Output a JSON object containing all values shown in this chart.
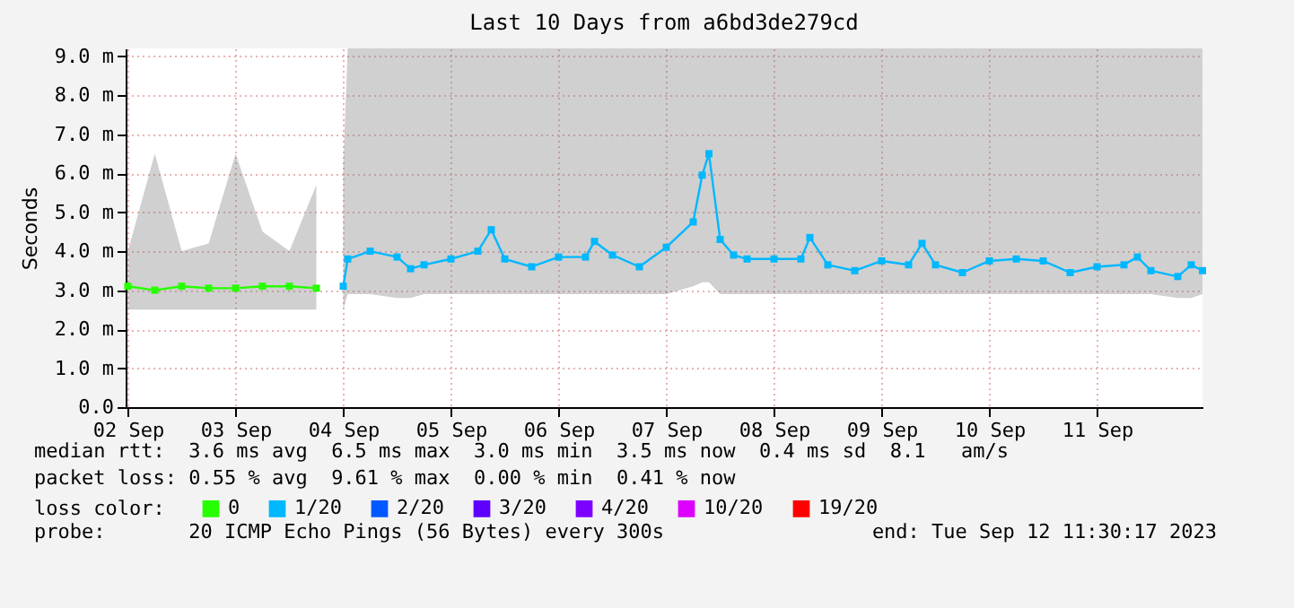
{
  "chart_data": {
    "type": "line",
    "title": "Last 10 Days from a6bd3de279cd",
    "ylabel": "Seconds",
    "legend_title": "loss color:",
    "x": [
      "2023-09-02T12:00",
      "2023-09-02T18:00",
      "2023-09-03T00:00",
      "2023-09-03T06:00",
      "2023-09-03T12:00",
      "2023-09-03T18:00",
      "2023-09-04T00:00",
      "2023-09-04T06:00",
      "2023-09-04T12:00",
      "2023-09-04T13:00",
      "2023-09-04T18:00",
      "2023-09-05T00:00",
      "2023-09-05T03:00",
      "2023-09-05T06:00",
      "2023-09-05T12:00",
      "2023-09-05T18:00",
      "2023-09-05T21:00",
      "2023-09-06T00:00",
      "2023-09-06T06:00",
      "2023-09-06T12:00",
      "2023-09-06T18:00",
      "2023-09-06T20:00",
      "2023-09-07T00:00",
      "2023-09-07T06:00",
      "2023-09-07T12:00",
      "2023-09-07T18:00",
      "2023-09-07T20:00",
      "2023-09-07T21:30",
      "2023-09-08T00:00",
      "2023-09-08T03:00",
      "2023-09-08T06:00",
      "2023-09-08T12:00",
      "2023-09-08T18:00",
      "2023-09-08T20:00",
      "2023-09-09T00:00",
      "2023-09-09T06:00",
      "2023-09-09T12:00",
      "2023-09-09T18:00",
      "2023-09-09T21:00",
      "2023-09-10T00:00",
      "2023-09-10T06:00",
      "2023-09-10T12:00",
      "2023-09-10T18:00",
      "2023-09-11T00:00",
      "2023-09-11T06:00",
      "2023-09-11T12:00",
      "2023-09-11T18:00",
      "2023-09-11T21:00",
      "2023-09-12T00:00",
      "2023-09-12T06:00",
      "2023-09-12T09:00",
      "2023-09-12T11:30"
    ],
    "series": [
      {
        "name": "0",
        "color": "#26ff00",
        "values": [
          3.1,
          3.0,
          3.1,
          3.05,
          3.05,
          3.1,
          3.1,
          3.05,
          null,
          null,
          null,
          null,
          null,
          null,
          null,
          null,
          null,
          null,
          null,
          null,
          null,
          null,
          null,
          null,
          null,
          null,
          null,
          null,
          null,
          null,
          null,
          null,
          null,
          null,
          null,
          null,
          null,
          null,
          null,
          null,
          null,
          null,
          null,
          null,
          null,
          null,
          null,
          null,
          null,
          null,
          null,
          null
        ],
        "lower": [
          2.5,
          2.5,
          2.5,
          2.5,
          2.5,
          2.5,
          2.5,
          2.5,
          null,
          null,
          null,
          null,
          null,
          null,
          null,
          null,
          null,
          null,
          null,
          null,
          null,
          null,
          null,
          null,
          null,
          null,
          null,
          null,
          null,
          null,
          null,
          null,
          null,
          null,
          null,
          null,
          null,
          null,
          null,
          null,
          null,
          null,
          null,
          null,
          null,
          null,
          null,
          null,
          null,
          null,
          null,
          null
        ],
        "upper": [
          4.0,
          6.5,
          4.0,
          4.2,
          6.5,
          4.5,
          4.0,
          5.7,
          null,
          null,
          null,
          null,
          null,
          null,
          null,
          null,
          null,
          null,
          null,
          null,
          null,
          null,
          null,
          null,
          null,
          null,
          null,
          null,
          null,
          null,
          null,
          null,
          null,
          null,
          null,
          null,
          null,
          null,
          null,
          null,
          null,
          null,
          null,
          null,
          null,
          null,
          null,
          null,
          null,
          null,
          null,
          null
        ]
      },
      {
        "name": "1/20",
        "color": "#00b8ff",
        "values": [
          null,
          null,
          null,
          null,
          null,
          null,
          null,
          null,
          3.1,
          3.8,
          4.0,
          3.85,
          3.55,
          3.65,
          3.8,
          4.0,
          4.55,
          3.8,
          3.6,
          3.85,
          3.85,
          4.25,
          3.9,
          3.6,
          4.1,
          4.75,
          5.95,
          6.5,
          4.3,
          3.9,
          3.8,
          3.8,
          3.8,
          4.35,
          3.65,
          3.5,
          3.75,
          3.65,
          4.2,
          3.65,
          3.45,
          3.75,
          3.8,
          3.75,
          3.45,
          3.6,
          3.65,
          3.85,
          3.5,
          3.35,
          3.65,
          3.5
        ],
        "lower": [
          null,
          null,
          null,
          null,
          null,
          null,
          null,
          null,
          2.5,
          2.9,
          2.9,
          2.8,
          2.8,
          2.9,
          2.9,
          2.9,
          2.9,
          2.9,
          2.9,
          2.9,
          2.9,
          2.9,
          2.9,
          2.9,
          2.9,
          3.1,
          3.2,
          3.2,
          2.9,
          2.9,
          2.9,
          2.9,
          2.9,
          2.9,
          2.9,
          2.9,
          2.9,
          2.9,
          2.9,
          2.9,
          2.9,
          2.9,
          2.9,
          2.9,
          2.9,
          2.9,
          2.9,
          2.9,
          2.9,
          2.8,
          2.8,
          2.9
        ],
        "upper": [
          null,
          null,
          null,
          null,
          null,
          null,
          null,
          null,
          6.2,
          9.2,
          9.2,
          9.2,
          9.2,
          9.2,
          9.2,
          9.2,
          9.2,
          9.2,
          9.2,
          9.2,
          9.2,
          9.2,
          9.2,
          9.2,
          9.2,
          9.2,
          9.2,
          9.2,
          9.2,
          9.2,
          9.2,
          9.2,
          9.2,
          9.2,
          9.2,
          9.2,
          9.2,
          9.2,
          9.2,
          9.2,
          9.2,
          9.2,
          9.2,
          9.2,
          9.2,
          9.2,
          9.2,
          9.2,
          9.2,
          9.2,
          9.2,
          9.2
        ]
      },
      {
        "name": "2/20",
        "color": "#0059ff",
        "values": [
          null,
          null,
          null,
          null,
          null,
          null,
          null,
          null,
          null,
          null,
          null,
          null,
          null,
          null,
          null,
          null,
          null,
          null,
          null,
          null,
          null,
          null,
          null,
          null,
          null,
          null,
          null,
          null,
          null,
          null,
          null,
          null,
          null,
          null,
          null,
          null,
          null,
          null,
          null,
          null,
          null,
          null,
          null,
          null,
          null,
          null,
          null,
          null,
          null,
          null,
          null,
          null
        ]
      },
      {
        "name": "3/20",
        "color": "#5e00ff",
        "values": [
          null,
          null,
          null,
          null,
          null,
          null,
          null,
          null,
          null,
          null,
          null,
          null,
          null,
          null,
          null,
          null,
          null,
          null,
          null,
          null,
          null,
          null,
          null,
          null,
          null,
          null,
          null,
          null,
          null,
          null,
          null,
          null,
          null,
          null,
          null,
          null,
          null,
          null,
          null,
          null,
          null,
          null,
          null,
          null,
          null,
          null,
          null,
          null,
          null,
          null,
          null,
          null
        ]
      },
      {
        "name": "4/20",
        "color": "#7e00ff",
        "values": [
          null,
          null,
          null,
          null,
          null,
          null,
          null,
          null,
          null,
          null,
          null,
          null,
          null,
          null,
          null,
          null,
          null,
          null,
          null,
          null,
          null,
          null,
          null,
          null,
          null,
          null,
          null,
          null,
          null,
          null,
          null,
          null,
          null,
          null,
          null,
          null,
          null,
          null,
          null,
          null,
          null,
          null,
          null,
          null,
          null,
          null,
          null,
          null,
          null,
          null,
          null,
          null
        ]
      },
      {
        "name": "10/20",
        "color": "#dd00ff",
        "values": [
          null,
          null,
          null,
          null,
          null,
          null,
          null,
          null,
          null,
          null,
          null,
          null,
          null,
          null,
          null,
          null,
          null,
          null,
          null,
          null,
          null,
          null,
          null,
          null,
          null,
          null,
          null,
          null,
          null,
          null,
          null,
          null,
          null,
          null,
          null,
          null,
          null,
          null,
          null,
          null,
          null,
          null,
          null,
          null,
          null,
          null,
          null,
          null,
          null,
          null,
          null,
          null
        ]
      },
      {
        "name": "19/20",
        "color": "#ff0000",
        "values": [
          null,
          null,
          null,
          null,
          null,
          null,
          null,
          null,
          null,
          null,
          null,
          null,
          null,
          null,
          null,
          null,
          null,
          null,
          null,
          null,
          null,
          null,
          null,
          null,
          null,
          null,
          null,
          null,
          null,
          null,
          null,
          null,
          null,
          null,
          null,
          null,
          null,
          null,
          null,
          null,
          null,
          null,
          null,
          null,
          null,
          null,
          null,
          null,
          null,
          null,
          null,
          null
        ]
      }
    ],
    "xlim": [
      "2023-09-02T11:30",
      "2023-09-12T11:30"
    ],
    "xticks": [
      {
        "value": "2023-09-02T12:00",
        "label": "02 Sep"
      },
      {
        "value": "2023-09-03T12:00",
        "label": "03 Sep"
      },
      {
        "value": "2023-09-04T12:00",
        "label": "04 Sep"
      },
      {
        "value": "2023-09-05T12:00",
        "label": "05 Sep"
      },
      {
        "value": "2023-09-06T12:00",
        "label": "06 Sep"
      },
      {
        "value": "2023-09-07T12:00",
        "label": "07 Sep"
      },
      {
        "value": "2023-09-08T12:00",
        "label": "08 Sep"
      },
      {
        "value": "2023-09-09T12:00",
        "label": "09 Sep"
      },
      {
        "value": "2023-09-10T12:00",
        "label": "10 Sep"
      },
      {
        "value": "2023-09-11T12:00",
        "label": "11 Sep"
      }
    ],
    "ylim": [
      0,
      9.2
    ],
    "yticks": [
      {
        "value": 0,
        "label": "0.0"
      },
      {
        "value": 1,
        "label": "1.0 m"
      },
      {
        "value": 2,
        "label": "2.0 m"
      },
      {
        "value": 3,
        "label": "3.0 m"
      },
      {
        "value": 4,
        "label": "4.0 m"
      },
      {
        "value": 5,
        "label": "5.0 m"
      },
      {
        "value": 6,
        "label": "6.0 m"
      },
      {
        "value": 7,
        "label": "7.0 m"
      },
      {
        "value": 8,
        "label": "8.0 m"
      },
      {
        "value": 9,
        "label": "9.0 m"
      }
    ],
    "grid": true,
    "legend": "bottom",
    "marker": "square",
    "annotations": [
      "median rtt:  3.6 ms avg  6.5 ms max  3.0 ms min  3.5 ms now  0.4 ms sd  8.1   am/s",
      "packet loss: 0.55 % avg  9.61 % max  0.00 % min  0.41 % now",
      "probe:       20 ICMP Echo Pings (56 Bytes) every 300s",
      "end: Tue Sep 12 11:30:17 2023"
    ]
  }
}
